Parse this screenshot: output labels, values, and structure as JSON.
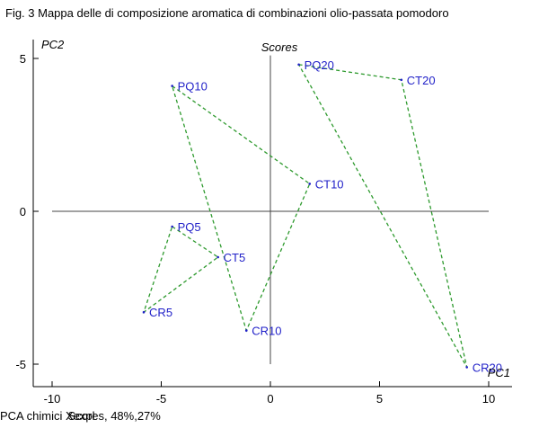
{
  "title": "Fig. 3 Mappa delle di composizione aromatica di combinazioni olio-passata pomodoro",
  "footer": {
    "text1": "PCA chimici",
    "text2": "Xexpl",
    "text3": "Scores, 48%,27%"
  },
  "chart_data": {
    "type": "scatter",
    "title": "Scores",
    "xlabel": "PC1",
    "ylabel": "PC2",
    "xlim": [
      -10.5,
      10.5
    ],
    "ylim": [
      -5.8,
      5.6
    ],
    "x_ticks": [
      -10,
      -5,
      0,
      5,
      10
    ],
    "y_ticks": [
      -5,
      0,
      5
    ],
    "grid": false,
    "points": [
      {
        "label": "PQ20",
        "x": 1.3,
        "y": 4.8
      },
      {
        "label": "CT20",
        "x": 6.0,
        "y": 4.3
      },
      {
        "label": "PQ10",
        "x": -4.5,
        "y": 4.1
      },
      {
        "label": "CT10",
        "x": 1.8,
        "y": 0.9
      },
      {
        "label": "PQ5",
        "x": -4.5,
        "y": -0.5
      },
      {
        "label": "CT5",
        "x": -2.4,
        "y": -1.5
      },
      {
        "label": "CR5",
        "x": -5.8,
        "y": -3.3
      },
      {
        "label": "CR10",
        "x": -1.1,
        "y": -3.9
      },
      {
        "label": "CR20",
        "x": 9.0,
        "y": -5.1
      }
    ],
    "triangles": [
      [
        "PQ5",
        "CT5",
        "CR5"
      ],
      [
        "PQ10",
        "CT10",
        "CR10"
      ],
      [
        "PQ20",
        "CT20",
        "CR20"
      ]
    ],
    "colors": {
      "points": "#1f1fc8",
      "lines": "#2e9a2e",
      "axes": "#000000"
    }
  }
}
